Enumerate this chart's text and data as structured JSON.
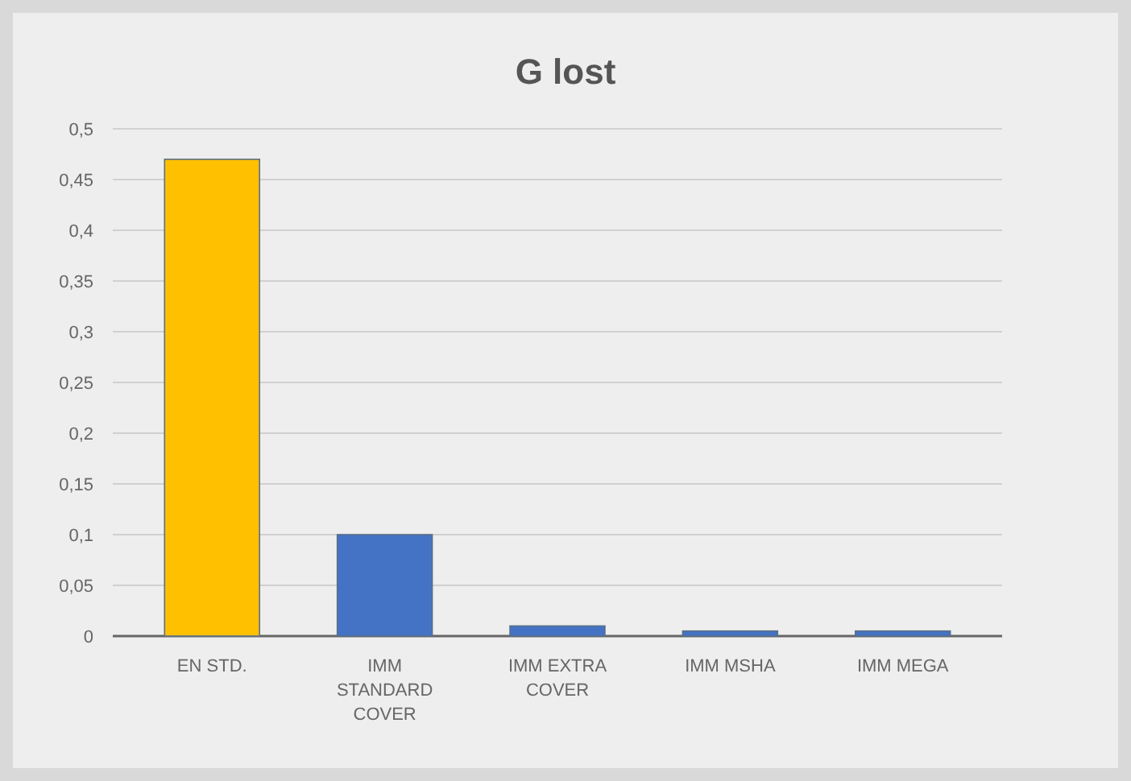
{
  "chart_data": {
    "type": "bar",
    "title": "G lost",
    "categories": [
      "EN STD.",
      "IMM STANDARD COVER",
      "IMM EXTRA COVER",
      "IMM MSHA",
      "IMM MEGA"
    ],
    "values": [
      0.47,
      0.1,
      0.01,
      0.005,
      0.005
    ],
    "colors": [
      "#ffc000",
      "#4472c4",
      "#4472c4",
      "#4472c4",
      "#4472c4"
    ],
    "ylim": [
      0,
      0.5
    ],
    "yticks": [
      0,
      {
        "value": 0.05,
        "label": "0,05"
      },
      {
        "value": 0.1,
        "label": "0,1"
      },
      {
        "value": 0.15,
        "label": "0,15"
      },
      {
        "value": 0.2,
        "label": "0,2"
      },
      {
        "value": 0.25,
        "label": "0,25"
      },
      {
        "value": 0.3,
        "label": "0,3"
      },
      {
        "value": 0.35,
        "label": "0,35"
      },
      {
        "value": 0.4,
        "label": "0,4"
      },
      {
        "value": 0.45,
        "label": "0,45"
      },
      {
        "value": 0.5,
        "label": "0,5"
      }
    ],
    "grid": true
  }
}
